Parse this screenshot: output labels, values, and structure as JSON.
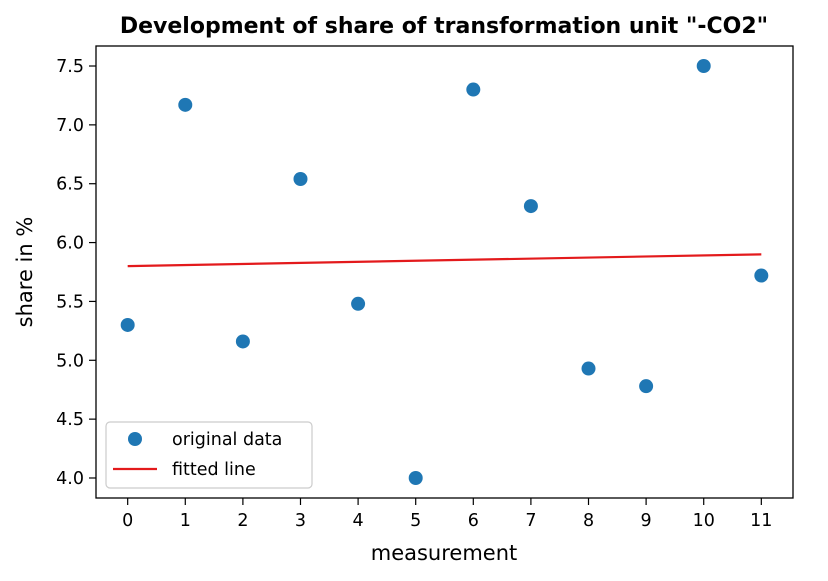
{
  "chart_data": {
    "type": "scatter",
    "title": "Development of share of transformation unit \"-CO2\"",
    "xlabel": "measurement",
    "ylabel": "share in %",
    "xlim": [
      -0.55,
      11.55
    ],
    "ylim": [
      3.83,
      7.67
    ],
    "x_ticks": [
      0,
      1,
      2,
      3,
      4,
      5,
      6,
      7,
      8,
      9,
      10,
      11
    ],
    "x_tick_labels": [
      "0",
      "1",
      "2",
      "3",
      "4",
      "5",
      "6",
      "7",
      "8",
      "9",
      "10",
      "11"
    ],
    "y_ticks": [
      4.0,
      4.5,
      5.0,
      5.5,
      6.0,
      6.5,
      7.0,
      7.5
    ],
    "y_tick_labels": [
      "4.0",
      "4.5",
      "5.0",
      "5.5",
      "6.0",
      "6.5",
      "7.0",
      "7.5"
    ],
    "grid": false,
    "legend_position": "lower-left",
    "series": [
      {
        "name": "original data",
        "kind": "scatter",
        "color": "#1f77b4",
        "x": [
          0,
          1,
          2,
          3,
          4,
          5,
          6,
          7,
          8,
          9,
          10,
          11
        ],
        "y": [
          5.3,
          7.17,
          5.16,
          6.54,
          5.48,
          4.0,
          7.3,
          6.31,
          4.93,
          4.78,
          7.5,
          5.72
        ]
      },
      {
        "name": "fitted line",
        "kind": "line",
        "color": "#e31a1c",
        "x": [
          0,
          11
        ],
        "y": [
          5.8,
          5.9
        ]
      }
    ]
  }
}
